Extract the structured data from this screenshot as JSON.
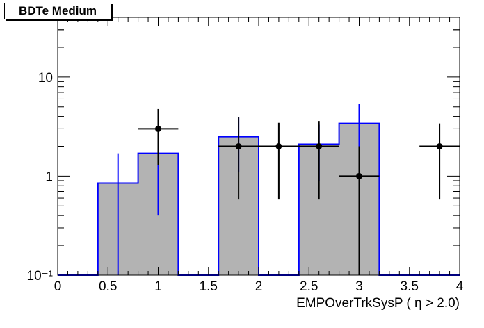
{
  "chart_data": {
    "type": "bar",
    "title": "BDTe Medium",
    "xlabel": "EMPOverTrkSysP ( η > 2.0)",
    "ylabel": "",
    "xlim": [
      0,
      4
    ],
    "ylim": [
      0.1,
      40
    ],
    "yscale": "log",
    "x_ticks": [
      "0",
      "0.5",
      "1",
      "1.5",
      "2",
      "2.5",
      "3",
      "3.5",
      "4"
    ],
    "y_ticks": [
      "10⁻¹",
      "1",
      "10"
    ],
    "grid": false,
    "legend": "none",
    "colors": {
      "fill": "#b3b3b3",
      "line": "#0000ff",
      "points": "#000000"
    },
    "series": [
      {
        "type": "histogram",
        "bins": [
          {
            "x0": 0.0,
            "x1": 0.4,
            "value": 0
          },
          {
            "x0": 0.4,
            "x1": 0.8,
            "value": 0.85,
            "err": 0.85
          },
          {
            "x0": 0.8,
            "x1": 1.2,
            "value": 1.7,
            "err": 1.3
          },
          {
            "x0": 1.2,
            "x1": 1.6,
            "value": 0
          },
          {
            "x0": 1.6,
            "x1": 2.0,
            "value": 2.5,
            "err": 1.4
          },
          {
            "x0": 2.0,
            "x1": 2.4,
            "value": 0
          },
          {
            "x0": 2.4,
            "x1": 2.8,
            "value": 2.1,
            "err": 1.2
          },
          {
            "x0": 2.8,
            "x1": 3.2,
            "value": 3.4,
            "err": 2.0
          },
          {
            "x0": 3.2,
            "x1": 4.0,
            "value": 0
          }
        ]
      },
      {
        "type": "points",
        "points": [
          {
            "x": 1.0,
            "y": 3,
            "xerr": 0.2,
            "ylo": 1.3,
            "yhi": 4.75
          },
          {
            "x": 1.8,
            "y": 2,
            "xerr": 0.2,
            "ylo": 0.58,
            "yhi": 3.95
          },
          {
            "x": 2.2,
            "y": 2,
            "xerr": 0.2,
            "ylo": 0.58,
            "yhi": 3.45
          },
          {
            "x": 2.6,
            "y": 2,
            "xerr": 0.2,
            "ylo": 0.58,
            "yhi": 3.6
          },
          {
            "x": 3.0,
            "y": 1,
            "xerr": 0.2,
            "ylo": 0.1,
            "yhi": 2.0
          },
          {
            "x": 3.8,
            "y": 2,
            "xerr": 0.2,
            "ylo": 0.58,
            "yhi": 3.4
          }
        ]
      }
    ]
  }
}
